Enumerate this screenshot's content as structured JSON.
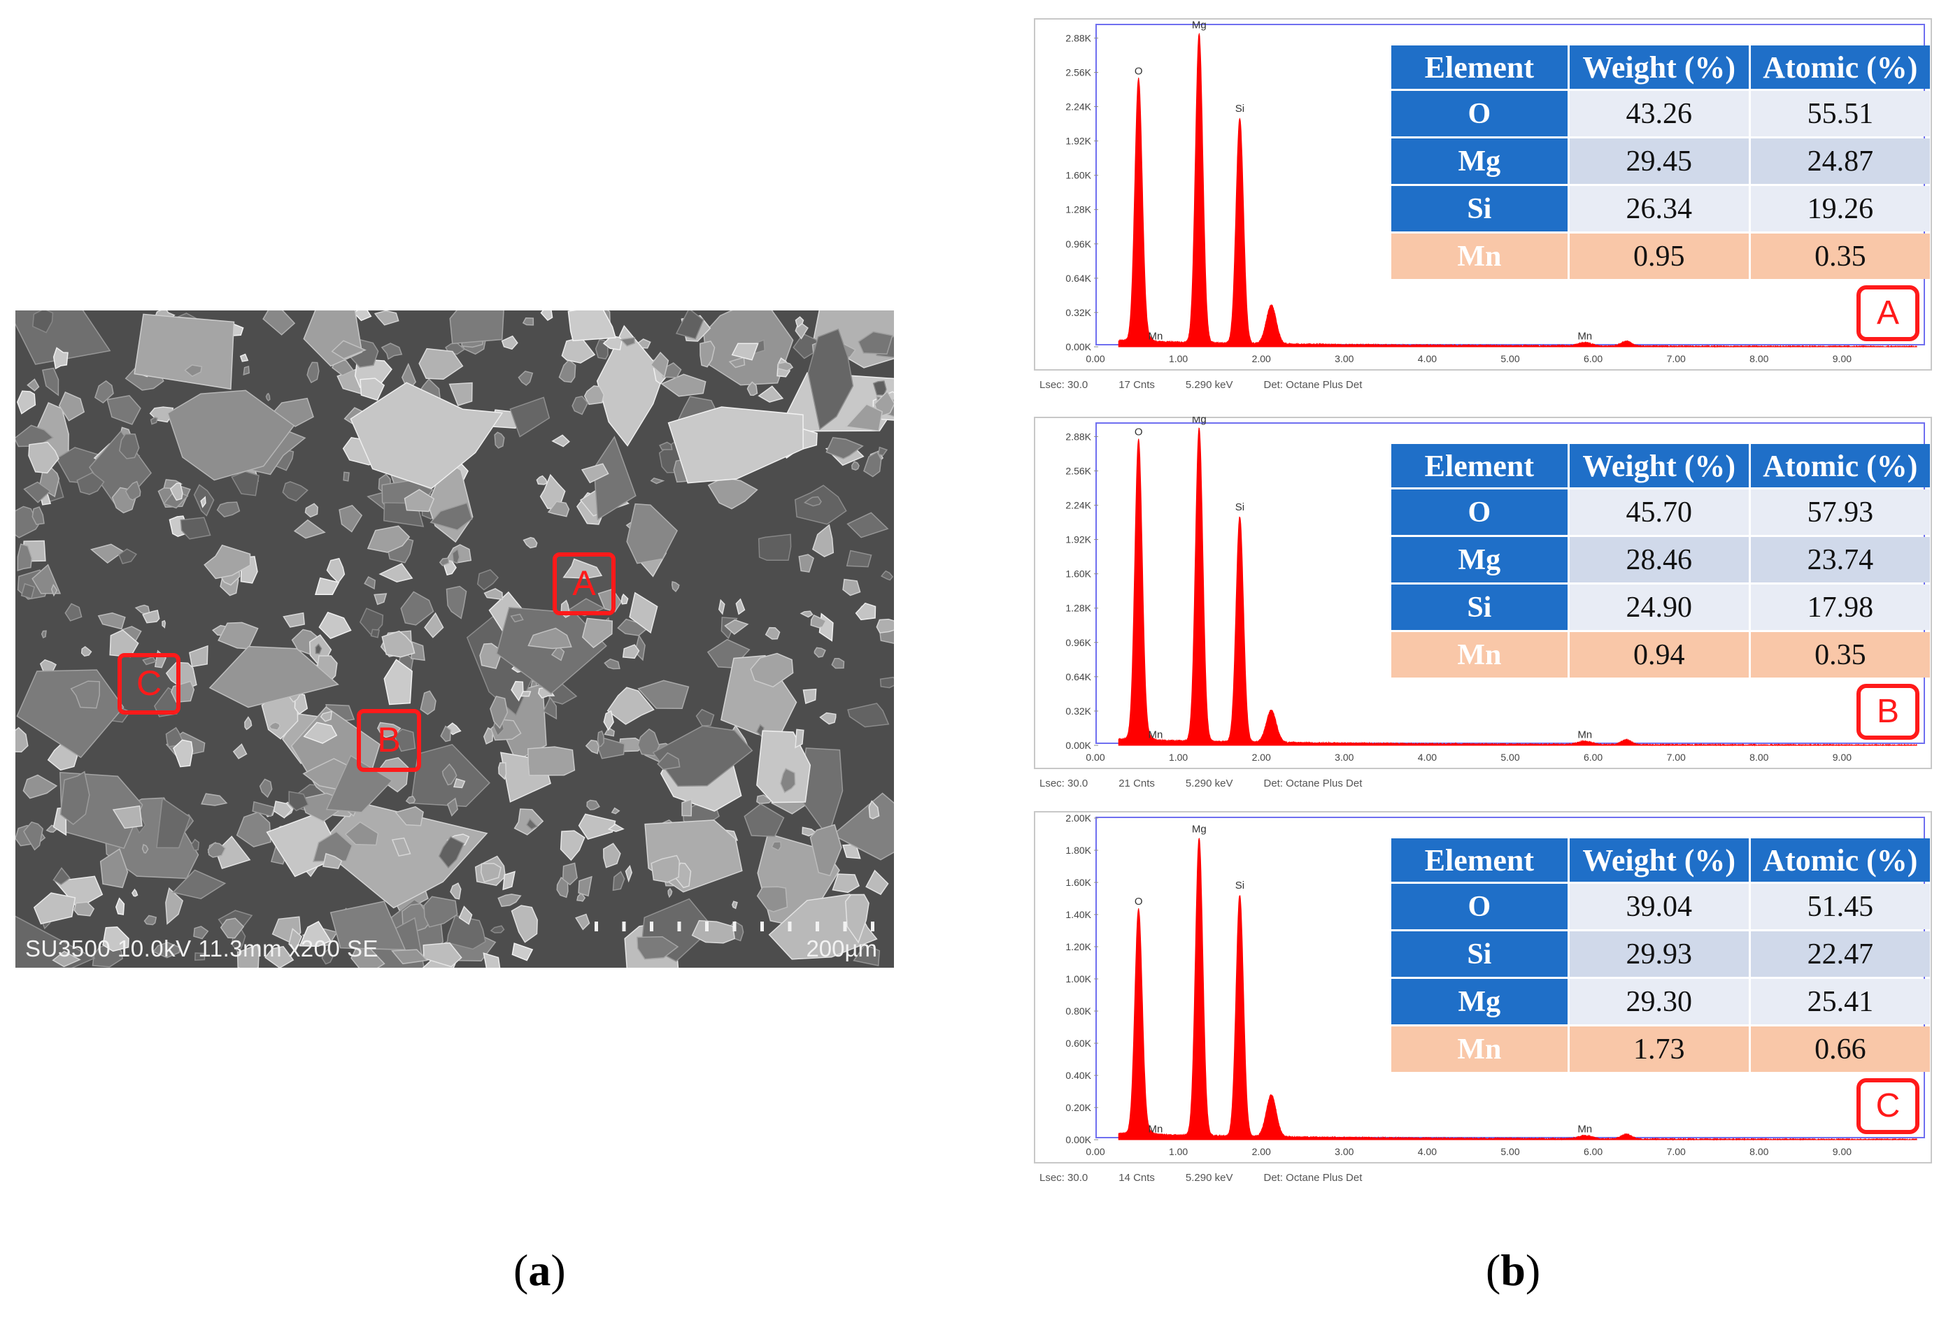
{
  "sem": {
    "info_text": "SU3500 10.0kV 11.3mm x200 SE",
    "scale_label": "200µm",
    "regions": [
      {
        "label": "A"
      },
      {
        "label": "B"
      },
      {
        "label": "C"
      }
    ]
  },
  "captions": {
    "a": "a",
    "b": "b"
  },
  "colors": {
    "spectrum": "#ff0000",
    "table_header": "#1f6fc8",
    "table_minor": "#f9c7a8",
    "marker": "#ff1a1a"
  },
  "chart_data": [
    {
      "type": "area",
      "panel_label": "A",
      "xlim": [
        0,
        10
      ],
      "ylim": [
        0,
        3.0
      ],
      "x_ticks": [
        "0.00",
        "1.00",
        "2.00",
        "3.00",
        "4.00",
        "5.00",
        "6.00",
        "7.00",
        "8.00",
        "9.00"
      ],
      "y_ticks": [
        "0.00K",
        "0.32K",
        "0.64K",
        "0.96K",
        "1.28K",
        "1.60K",
        "1.92K",
        "2.24K",
        "2.56K",
        "2.88K"
      ],
      "peaks": [
        {
          "label": "O",
          "x": 0.52,
          "y": 2.45
        },
        {
          "label": "Mg",
          "x": 1.25,
          "y": 2.88
        },
        {
          "label": "Si",
          "x": 1.74,
          "y": 2.1
        },
        {
          "label": "",
          "x": 2.12,
          "y": 0.36
        },
        {
          "label": "Mn",
          "x": 0.64,
          "y": 0.03
        },
        {
          "label": "Mn",
          "x": 5.9,
          "y": 0.03
        }
      ],
      "footer": [
        "Lsec: 30.0",
        "17 Cnts",
        "5.290 keV",
        "Det: Octane Plus Det"
      ],
      "table": {
        "headers": [
          "Element",
          "Weight (%)",
          "Atomic (%)"
        ],
        "rows": [
          {
            "element": "O",
            "weight": "43.26",
            "atomic": "55.51",
            "minor": false
          },
          {
            "element": "Mg",
            "weight": "29.45",
            "atomic": "24.87",
            "minor": false
          },
          {
            "element": "Si",
            "weight": "26.34",
            "atomic": "19.26",
            "minor": false
          },
          {
            "element": "Mn",
            "weight": "0.95",
            "atomic": "0.35",
            "minor": true
          }
        ]
      }
    },
    {
      "type": "area",
      "panel_label": "B",
      "xlim": [
        0,
        10
      ],
      "ylim": [
        0,
        3.0
      ],
      "x_ticks": [
        "0.00",
        "1.00",
        "2.00",
        "3.00",
        "4.00",
        "5.00",
        "6.00",
        "7.00",
        "8.00",
        "9.00"
      ],
      "y_ticks": [
        "0.00K",
        "0.32K",
        "0.64K",
        "0.96K",
        "1.28K",
        "1.60K",
        "1.92K",
        "2.24K",
        "2.56K",
        "2.88K"
      ],
      "peaks": [
        {
          "label": "O",
          "x": 0.52,
          "y": 2.8
        },
        {
          "label": "Mg",
          "x": 1.25,
          "y": 2.92
        },
        {
          "label": "Si",
          "x": 1.74,
          "y": 2.1
        },
        {
          "label": "",
          "x": 2.12,
          "y": 0.3
        },
        {
          "label": "Mn",
          "x": 0.64,
          "y": 0.03
        },
        {
          "label": "Mn",
          "x": 5.9,
          "y": 0.03
        }
      ],
      "footer": [
        "Lsec: 30.0",
        "21 Cnts",
        "5.290 keV",
        "Det: Octane Plus Det"
      ],
      "table": {
        "headers": [
          "Element",
          "Weight (%)",
          "Atomic (%)"
        ],
        "rows": [
          {
            "element": "O",
            "weight": "45.70",
            "atomic": "57.93",
            "minor": false
          },
          {
            "element": "Mg",
            "weight": "28.46",
            "atomic": "23.74",
            "minor": false
          },
          {
            "element": "Si",
            "weight": "24.90",
            "atomic": "17.98",
            "minor": false
          },
          {
            "element": "Mn",
            "weight": "0.94",
            "atomic": "0.35",
            "minor": true
          }
        ]
      }
    },
    {
      "type": "area",
      "panel_label": "C",
      "xlim": [
        0,
        10
      ],
      "ylim": [
        0,
        2.0
      ],
      "x_ticks": [
        "0.00",
        "1.00",
        "2.00",
        "3.00",
        "4.00",
        "5.00",
        "6.00",
        "7.00",
        "8.00",
        "9.00"
      ],
      "y_ticks": [
        "0.00K",
        "0.20K",
        "0.40K",
        "0.60K",
        "0.80K",
        "1.00K",
        "1.20K",
        "1.40K",
        "1.60K",
        "1.80K",
        "2.00K"
      ],
      "peaks": [
        {
          "label": "O",
          "x": 0.52,
          "y": 1.4
        },
        {
          "label": "Mg",
          "x": 1.25,
          "y": 1.85
        },
        {
          "label": "Si",
          "x": 1.74,
          "y": 1.5
        },
        {
          "label": "",
          "x": 2.12,
          "y": 0.26
        },
        {
          "label": "Mn",
          "x": 0.64,
          "y": 0.02
        },
        {
          "label": "Mn",
          "x": 5.9,
          "y": 0.02
        }
      ],
      "footer": [
        "Lsec: 30.0",
        "14 Cnts",
        "5.290 keV",
        "Det: Octane Plus Det"
      ],
      "table": {
        "headers": [
          "Element",
          "Weight (%)",
          "Atomic (%)"
        ],
        "rows": [
          {
            "element": "O",
            "weight": "39.04",
            "atomic": "51.45",
            "minor": false
          },
          {
            "element": "Si",
            "weight": "29.93",
            "atomic": "22.47",
            "minor": false
          },
          {
            "element": "Mg",
            "weight": "29.30",
            "atomic": "25.41",
            "minor": false
          },
          {
            "element": "Mn",
            "weight": "1.73",
            "atomic": "0.66",
            "minor": true
          }
        ]
      }
    }
  ]
}
